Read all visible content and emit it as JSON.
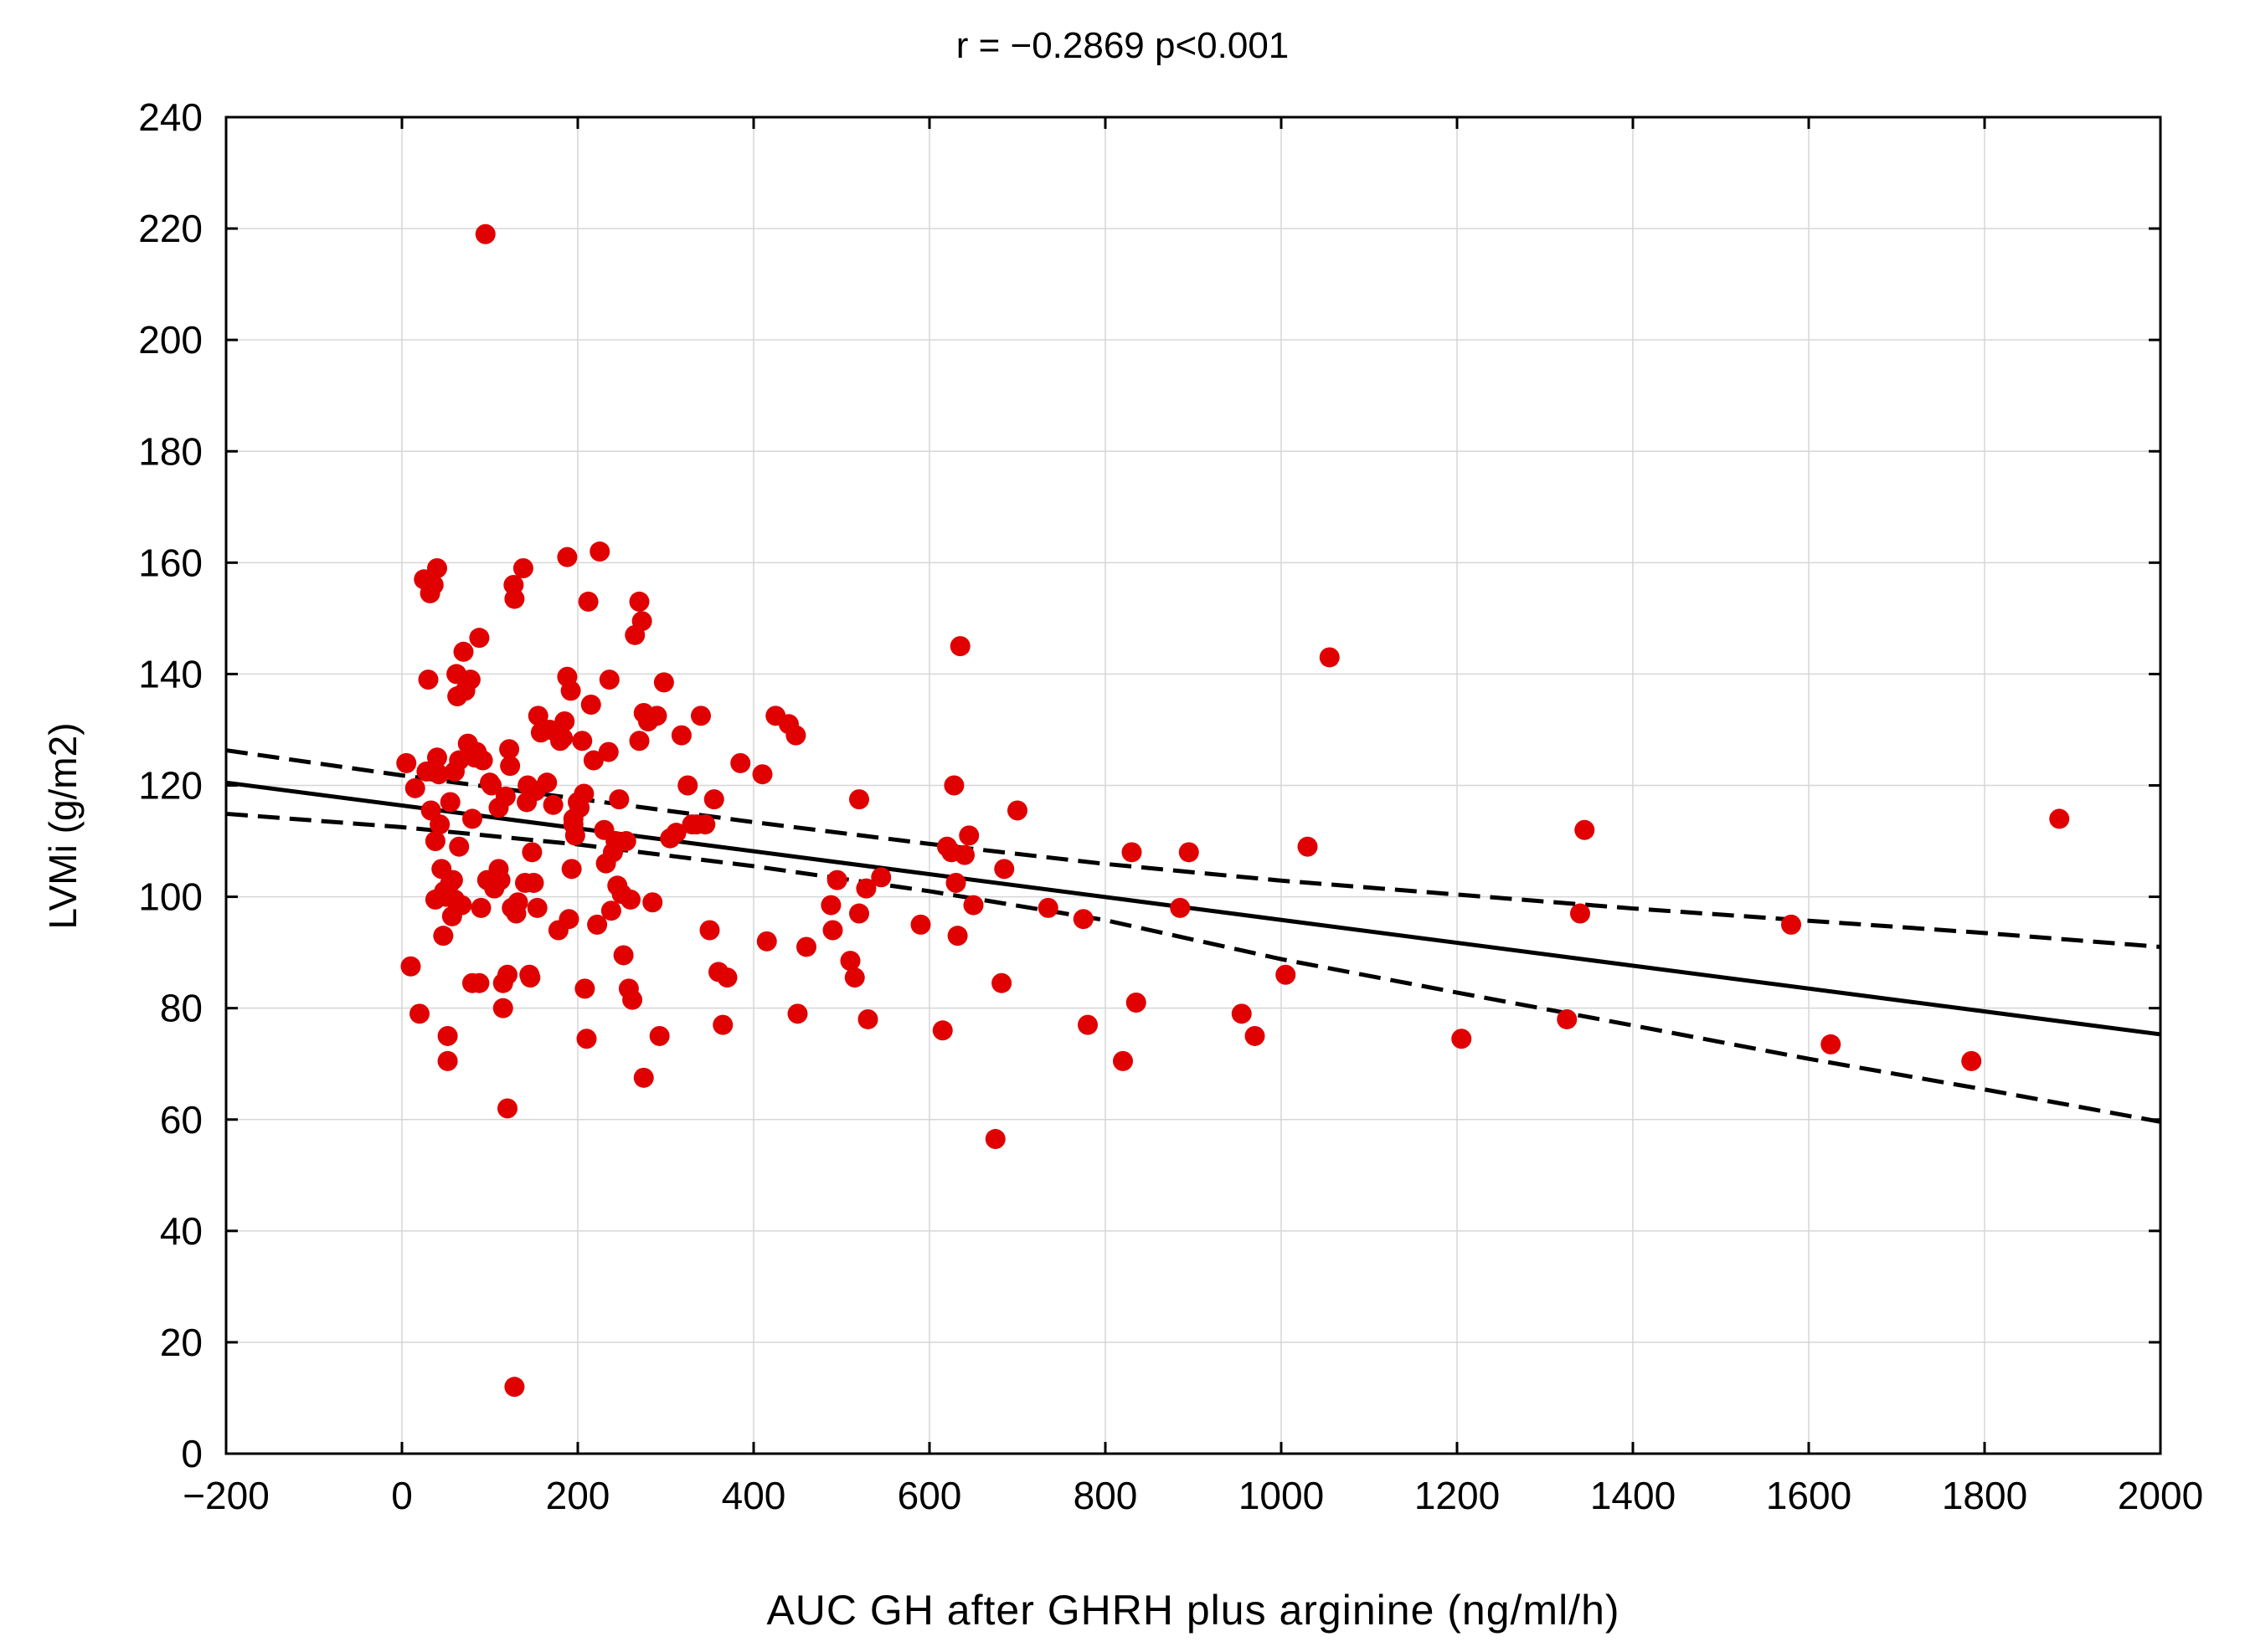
{
  "chart_data": {
    "type": "scatter",
    "title": "r = −0.2869 p<0.001",
    "xlabel": "AUC GH after GHRH plus arginine (ng/ml/h)",
    "ylabel": "LVMi (g/m2)",
    "xlim": [
      -200,
      2000
    ],
    "ylim": [
      0,
      240
    ],
    "x_ticks": [
      -200,
      0,
      200,
      400,
      600,
      800,
      1000,
      1200,
      1400,
      1600,
      1800,
      2000
    ],
    "x_tick_labels": [
      "−200",
      "0",
      "200",
      "400",
      "600",
      "800",
      "1000",
      "1200",
      "1400",
      "1600",
      "1800",
      "2000"
    ],
    "y_ticks": [
      0,
      20,
      40,
      60,
      80,
      100,
      120,
      140,
      160,
      180,
      200,
      220,
      240
    ],
    "y_tick_labels": [
      "0",
      "20",
      "40",
      "60",
      "80",
      "100",
      "120",
      "140",
      "160",
      "180",
      "200",
      "220",
      "240"
    ],
    "grid": true,
    "point_color": "#e00000",
    "regression_line": {
      "x": [
        -200,
        2000
      ],
      "y": [
        120.5,
        75.3
      ],
      "style": "solid"
    },
    "confidence_band_upper": {
      "x": [
        -200,
        0,
        200,
        400,
        600,
        800,
        1000,
        1200,
        1400,
        1600,
        1800,
        2000
      ],
      "y": [
        126.3,
        121.8,
        117.6,
        113.4,
        109.5,
        105.9,
        102.9,
        100.4,
        97.9,
        95.7,
        93.5,
        91.0
      ],
      "style": "dashed"
    },
    "confidence_band_lower": {
      "x": [
        -200,
        0,
        200,
        400,
        600,
        800,
        1000,
        1200,
        1400,
        1600,
        1800,
        2000
      ],
      "y": [
        114.9,
        112.5,
        109.4,
        105.5,
        101.0,
        95.8,
        88.8,
        82.8,
        76.9,
        70.9,
        65.4,
        59.6
      ],
      "style": "dashed"
    },
    "points": [
      [
        5,
        124
      ],
      [
        10,
        87.5
      ],
      [
        15,
        119.5
      ],
      [
        20,
        79
      ],
      [
        25,
        157
      ],
      [
        28,
        122.5
      ],
      [
        30,
        139
      ],
      [
        32,
        154.5
      ],
      [
        33,
        115.5
      ],
      [
        36,
        156
      ],
      [
        38,
        110
      ],
      [
        38,
        99.5
      ],
      [
        40,
        159
      ],
      [
        40,
        125
      ],
      [
        42,
        122
      ],
      [
        43,
        113
      ],
      [
        45,
        105
      ],
      [
        47,
        93
      ],
      [
        48,
        101
      ],
      [
        50,
        100
      ],
      [
        52,
        75
      ],
      [
        52,
        70.5
      ],
      [
        55,
        117
      ],
      [
        55,
        102.5
      ],
      [
        57,
        96.5
      ],
      [
        58,
        103
      ],
      [
        60,
        99.5
      ],
      [
        60,
        122.5
      ],
      [
        62,
        140
      ],
      [
        63,
        136
      ],
      [
        65,
        124.5
      ],
      [
        65,
        109
      ],
      [
        68,
        98.5
      ],
      [
        70,
        144
      ],
      [
        72,
        137
      ],
      [
        75,
        127.5
      ],
      [
        78,
        139
      ],
      [
        80,
        84.5
      ],
      [
        80,
        114
      ],
      [
        83,
        125
      ],
      [
        85,
        126
      ],
      [
        88,
        84.5
      ],
      [
        88,
        146.5
      ],
      [
        90,
        98
      ],
      [
        92,
        124.5
      ],
      [
        95,
        219
      ],
      [
        97,
        103
      ],
      [
        100,
        120.5
      ],
      [
        102,
        120
      ],
      [
        105,
        101.5
      ],
      [
        110,
        105
      ],
      [
        110,
        116
      ],
      [
        112,
        103
      ],
      [
        115,
        80
      ],
      [
        115,
        84.5
      ],
      [
        118,
        118
      ],
      [
        120,
        86
      ],
      [
        120,
        62
      ],
      [
        122,
        126.5
      ],
      [
        123,
        123.5
      ],
      [
        125,
        98
      ],
      [
        127,
        156
      ],
      [
        128,
        153.5
      ],
      [
        128,
        12
      ],
      [
        130,
        97
      ],
      [
        132,
        99
      ],
      [
        138,
        159
      ],
      [
        140,
        102.5
      ],
      [
        142,
        117
      ],
      [
        143,
        120
      ],
      [
        145,
        86
      ],
      [
        146,
        85.5
      ],
      [
        148,
        108
      ],
      [
        150,
        102.5
      ],
      [
        152,
        119
      ],
      [
        154,
        98
      ],
      [
        155,
        132.5
      ],
      [
        158,
        129.5
      ],
      [
        165,
        120.5
      ],
      [
        168,
        130
      ],
      [
        172,
        116.5
      ],
      [
        178,
        94
      ],
      [
        180,
        128
      ],
      [
        183,
        128.5
      ],
      [
        185,
        131.5
      ],
      [
        188,
        161
      ],
      [
        188,
        139.5
      ],
      [
        190,
        96
      ],
      [
        192,
        137
      ],
      [
        193,
        105
      ],
      [
        195,
        114
      ],
      [
        195,
        113
      ],
      [
        197,
        111
      ],
      [
        200,
        117
      ],
      [
        202,
        116
      ],
      [
        205,
        128
      ],
      [
        207,
        118.5
      ],
      [
        208,
        83.5
      ],
      [
        210,
        74.5
      ],
      [
        212,
        153
      ],
      [
        215,
        134.5
      ],
      [
        218,
        124.5
      ],
      [
        222,
        95
      ],
      [
        225,
        162
      ],
      [
        230,
        112
      ],
      [
        232,
        106
      ],
      [
        235,
        126
      ],
      [
        236,
        139
      ],
      [
        238,
        97.5
      ],
      [
        240,
        108
      ],
      [
        243,
        110
      ],
      [
        245,
        102
      ],
      [
        247,
        117.5
      ],
      [
        250,
        100.5
      ],
      [
        252,
        89.5
      ],
      [
        255,
        110
      ],
      [
        258,
        83.5
      ],
      [
        260,
        99.5
      ],
      [
        262,
        81.5
      ],
      [
        265,
        147
      ],
      [
        270,
        153
      ],
      [
        270,
        128
      ],
      [
        273,
        149.5
      ],
      [
        275,
        67.5
      ],
      [
        275,
        133
      ],
      [
        280,
        131.5
      ],
      [
        285,
        99
      ],
      [
        290,
        132.5
      ],
      [
        293,
        75
      ],
      [
        298,
        138.5
      ],
      [
        305,
        110.5
      ],
      [
        312,
        111.5
      ],
      [
        318,
        129
      ],
      [
        325,
        120
      ],
      [
        330,
        113
      ],
      [
        335,
        113
      ],
      [
        340,
        132.5
      ],
      [
        345,
        113
      ],
      [
        350,
        94
      ],
      [
        355,
        117.5
      ],
      [
        360,
        86.5
      ],
      [
        365,
        77
      ],
      [
        370,
        85.5
      ],
      [
        385,
        124
      ],
      [
        410,
        122
      ],
      [
        415,
        92
      ],
      [
        425,
        132.5
      ],
      [
        440,
        131
      ],
      [
        448,
        129
      ],
      [
        450,
        79
      ],
      [
        460,
        91
      ],
      [
        488,
        98.5
      ],
      [
        490,
        94
      ],
      [
        495,
        103
      ],
      [
        510,
        88.5
      ],
      [
        515,
        85.5
      ],
      [
        520,
        97
      ],
      [
        520,
        117.5
      ],
      [
        528,
        101.5
      ],
      [
        530,
        78
      ],
      [
        545,
        103.5
      ],
      [
        590,
        95
      ],
      [
        615,
        76
      ],
      [
        620,
        109
      ],
      [
        625,
        108
      ],
      [
        628,
        120
      ],
      [
        630,
        102.5
      ],
      [
        632,
        93
      ],
      [
        635,
        145
      ],
      [
        640,
        107.5
      ],
      [
        645,
        111
      ],
      [
        650,
        98.5
      ],
      [
        675,
        56.5
      ],
      [
        682,
        84.5
      ],
      [
        685,
        105
      ],
      [
        700,
        115.5
      ],
      [
        735,
        98
      ],
      [
        775,
        96
      ],
      [
        780,
        77
      ],
      [
        820,
        70.5
      ],
      [
        830,
        108
      ],
      [
        835,
        81
      ],
      [
        885,
        98
      ],
      [
        895,
        108
      ],
      [
        955,
        79
      ],
      [
        970,
        75
      ],
      [
        1005,
        86
      ],
      [
        1030,
        109
      ],
      [
        1055,
        143
      ],
      [
        1205,
        74.5
      ],
      [
        1325,
        78
      ],
      [
        1340,
        97
      ],
      [
        1345,
        112
      ],
      [
        1580,
        95
      ],
      [
        1625,
        73.5
      ],
      [
        1785,
        70.5
      ],
      [
        1885,
        114
      ]
    ]
  }
}
